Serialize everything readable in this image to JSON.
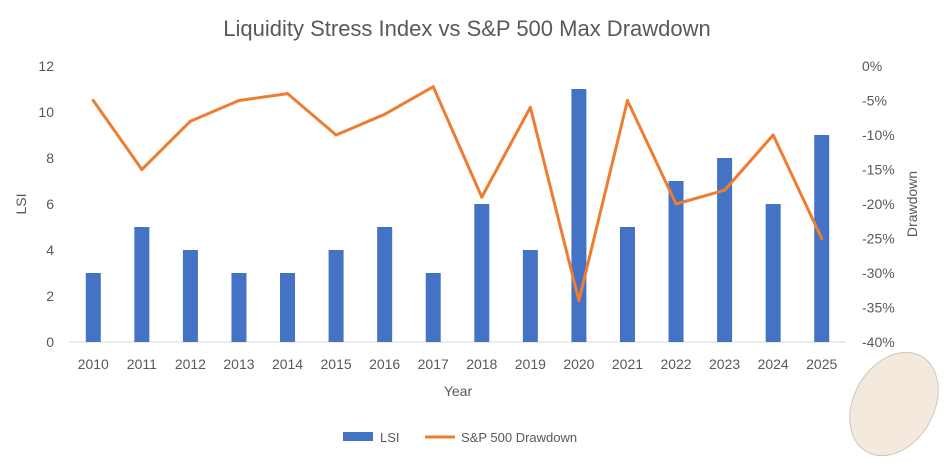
{
  "chart_data": {
    "type": "bar+line",
    "title": "Liquidity Stress Index vs S&P 500 Max Drawdown",
    "xlabel": "Year",
    "ylabel": "LSI",
    "y2label": "Drawdown",
    "categories": [
      "2010",
      "2011",
      "2012",
      "2013",
      "2014",
      "2015",
      "2016",
      "2017",
      "2018",
      "2019",
      "2020",
      "2021",
      "2022",
      "2023",
      "2024",
      "2025"
    ],
    "series": [
      {
        "name": "LSI",
        "type": "bar",
        "axis": "left",
        "color": "#4472C4",
        "values": [
          3,
          5,
          4,
          3,
          3,
          4,
          5,
          3,
          6,
          4,
          11,
          5,
          7,
          8,
          6,
          9
        ]
      },
      {
        "name": "S&P 500 Drawdown",
        "type": "line",
        "axis": "right",
        "color": "#ED7D31",
        "values": [
          -5,
          -15,
          -8,
          -5,
          -4,
          -10,
          -7,
          -3,
          -19,
          -6,
          -34,
          -5,
          -20,
          -18,
          -10,
          -25
        ]
      }
    ],
    "ylim": [
      0,
      12
    ],
    "yticks": [
      "0",
      "2",
      "4",
      "6",
      "8",
      "10",
      "12"
    ],
    "y2lim": [
      -40,
      0
    ],
    "y2ticks": [
      "0%",
      "-5%",
      "-10%",
      "-15%",
      "-20%",
      "-25%",
      "-30%",
      "-35%",
      "-40%"
    ],
    "grid": false,
    "legend": "bottom"
  }
}
